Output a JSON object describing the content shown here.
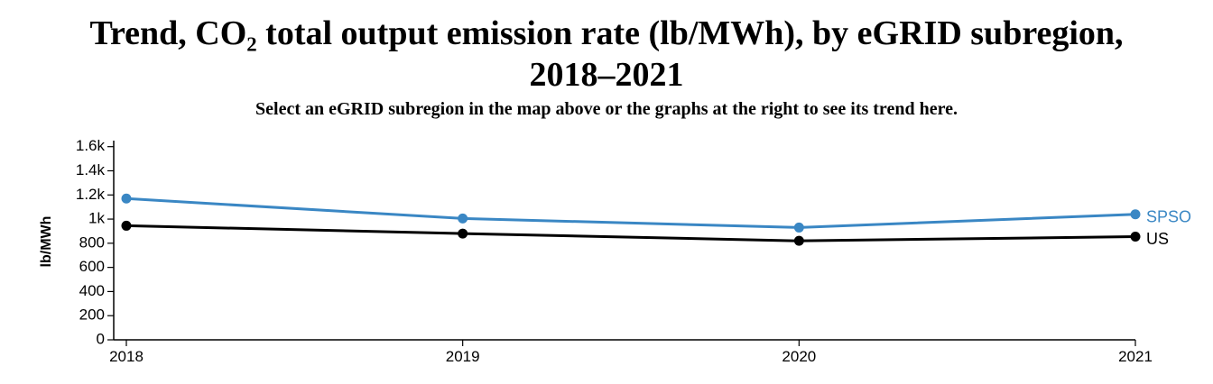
{
  "header": {
    "title_line1": "Trend, CO₂ total output emission rate (lb/MWh), by eGRID subregion,",
    "title_line2": "2018–2021",
    "subtitle": "Select an eGRID subregion in the map above or the graphs at the right to see its trend here."
  },
  "chart_data": {
    "type": "line",
    "title": "Trend, CO₂ total output emission rate (lb/MWh), by eGRID subregion, 2018–2021",
    "xlabel": "",
    "ylabel": "lb/MWh",
    "x": [
      2018,
      2019,
      2020,
      2021
    ],
    "x_tick_labels": [
      "2018",
      "2019",
      "2020",
      "2021"
    ],
    "ylim": [
      0,
      1650
    ],
    "y_ticks": [
      0,
      200,
      400,
      600,
      800,
      1000,
      1200,
      1400,
      1600
    ],
    "y_tick_labels": [
      "0",
      "200",
      "400",
      "600",
      "800",
      "1k",
      "1.2k",
      "1.4k",
      "1.6k"
    ],
    "grid": false,
    "series": [
      {
        "name": "SPSO",
        "color": "#3a87c4",
        "values": [
          1170,
          1005,
          930,
          1040
        ]
      },
      {
        "name": "US",
        "color": "#000000",
        "values": [
          945,
          880,
          820,
          855
        ]
      }
    ]
  }
}
